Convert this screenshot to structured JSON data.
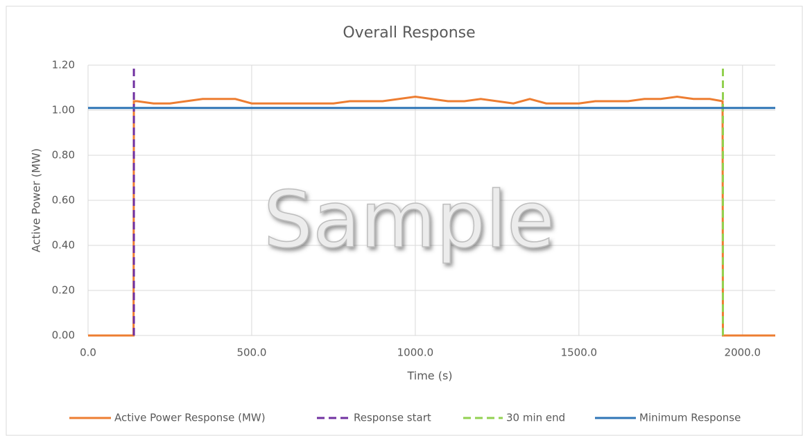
{
  "chart_data": {
    "type": "line",
    "title": "Overall Response",
    "x_label": "Time (s)",
    "y_label": "Active Power (MW)",
    "watermark": "Sample",
    "xlim": [
      0,
      2100
    ],
    "ylim": [
      0,
      1.2
    ],
    "xticks": [
      {
        "value": 0,
        "label": "0.0"
      },
      {
        "value": 500,
        "label": "500.0"
      },
      {
        "value": 1000,
        "label": "1000.0"
      },
      {
        "value": 1500,
        "label": "1500.0"
      },
      {
        "value": 2000,
        "label": "2000.0"
      }
    ],
    "yticks": [
      {
        "value": 0,
        "label": "0.00"
      },
      {
        "value": 0.2,
        "label": "0.20"
      },
      {
        "value": 0.4,
        "label": "0.40"
      },
      {
        "value": 0.6,
        "label": "0.60"
      },
      {
        "value": 0.8,
        "label": "0.80"
      },
      {
        "value": 1.0,
        "label": "1.00"
      },
      {
        "value": 1.2,
        "label": "1.20"
      }
    ],
    "grid": true,
    "legend": "bottom",
    "series": [
      {
        "name": "Active Power Response (MW)",
        "color": "#ed7d31",
        "dash": false,
        "x": [
          0,
          139,
          140,
          150,
          200,
          250,
          300,
          350,
          400,
          450,
          500,
          550,
          600,
          650,
          700,
          750,
          800,
          850,
          900,
          950,
          1000,
          1050,
          1100,
          1150,
          1200,
          1250,
          1300,
          1350,
          1400,
          1450,
          1500,
          1550,
          1600,
          1650,
          1700,
          1750,
          1800,
          1850,
          1900,
          1939,
          1940,
          2100
        ],
        "values": [
          0,
          0,
          1.04,
          1.04,
          1.03,
          1.03,
          1.04,
          1.05,
          1.05,
          1.05,
          1.03,
          1.03,
          1.03,
          1.03,
          1.03,
          1.03,
          1.04,
          1.04,
          1.04,
          1.05,
          1.06,
          1.05,
          1.04,
          1.04,
          1.05,
          1.04,
          1.03,
          1.05,
          1.03,
          1.03,
          1.03,
          1.04,
          1.04,
          1.04,
          1.05,
          1.05,
          1.06,
          1.05,
          1.05,
          1.04,
          0,
          0
        ]
      },
      {
        "name": "Response start",
        "color": "#7030a0",
        "dash": true,
        "x": [
          140,
          140
        ],
        "values": [
          0,
          1.2
        ]
      },
      {
        "name": "30 min end",
        "color": "#92d050",
        "dash": true,
        "x": [
          1940,
          1940
        ],
        "values": [
          0,
          1.2
        ]
      },
      {
        "name": "Minimum Response",
        "color": "#2e75b6",
        "dash": false,
        "x": [
          0,
          2100
        ],
        "values": [
          1.01,
          1.01
        ]
      }
    ]
  }
}
